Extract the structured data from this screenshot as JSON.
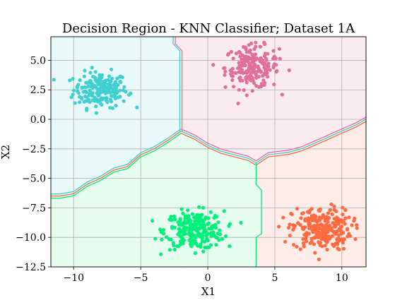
{
  "chart_data": {
    "type": "scatter",
    "title": "Decision Region - KNN Classifier; Dataset 1A",
    "xlabel": "X1",
    "ylabel": "X2",
    "xlim": [
      -11.7,
      11.8
    ],
    "ylim": [
      -12.5,
      7.0
    ],
    "xticks": [
      -10,
      -5,
      0,
      5,
      10
    ],
    "yticks": [
      5.0,
      2.5,
      0.0,
      -2.5,
      -5.0,
      -7.5,
      -10.0,
      -12.5
    ],
    "xtick_labels": [
      "−10",
      "−5",
      "0",
      "5",
      "10"
    ],
    "ytick_labels": [
      "5.0",
      "2.5",
      "0.0",
      "−2.5",
      "−5.0",
      "−7.5",
      "−10.0",
      "−12.5"
    ],
    "grid": true,
    "classes": [
      {
        "color": "#40d0d0",
        "region_color": "#e9f8f8",
        "center": [
          -8.0,
          2.5
        ],
        "spread": [
          1.0,
          0.75
        ],
        "count": 200
      },
      {
        "color": "#e0709a",
        "region_color": "#f9ebf0",
        "center": [
          3.3,
          4.4
        ],
        "spread": [
          1.0,
          0.9
        ],
        "count": 200
      },
      {
        "color": "#00f07a",
        "region_color": "#e6fcef",
        "center": [
          -1.0,
          -9.4
        ],
        "spread": [
          1.1,
          0.8
        ],
        "count": 250
      },
      {
        "color": "#ff6a40",
        "region_color": "#fdece8",
        "center": [
          8.5,
          -9.3
        ],
        "spread": [
          1.1,
          0.9
        ],
        "count": 250
      }
    ]
  }
}
